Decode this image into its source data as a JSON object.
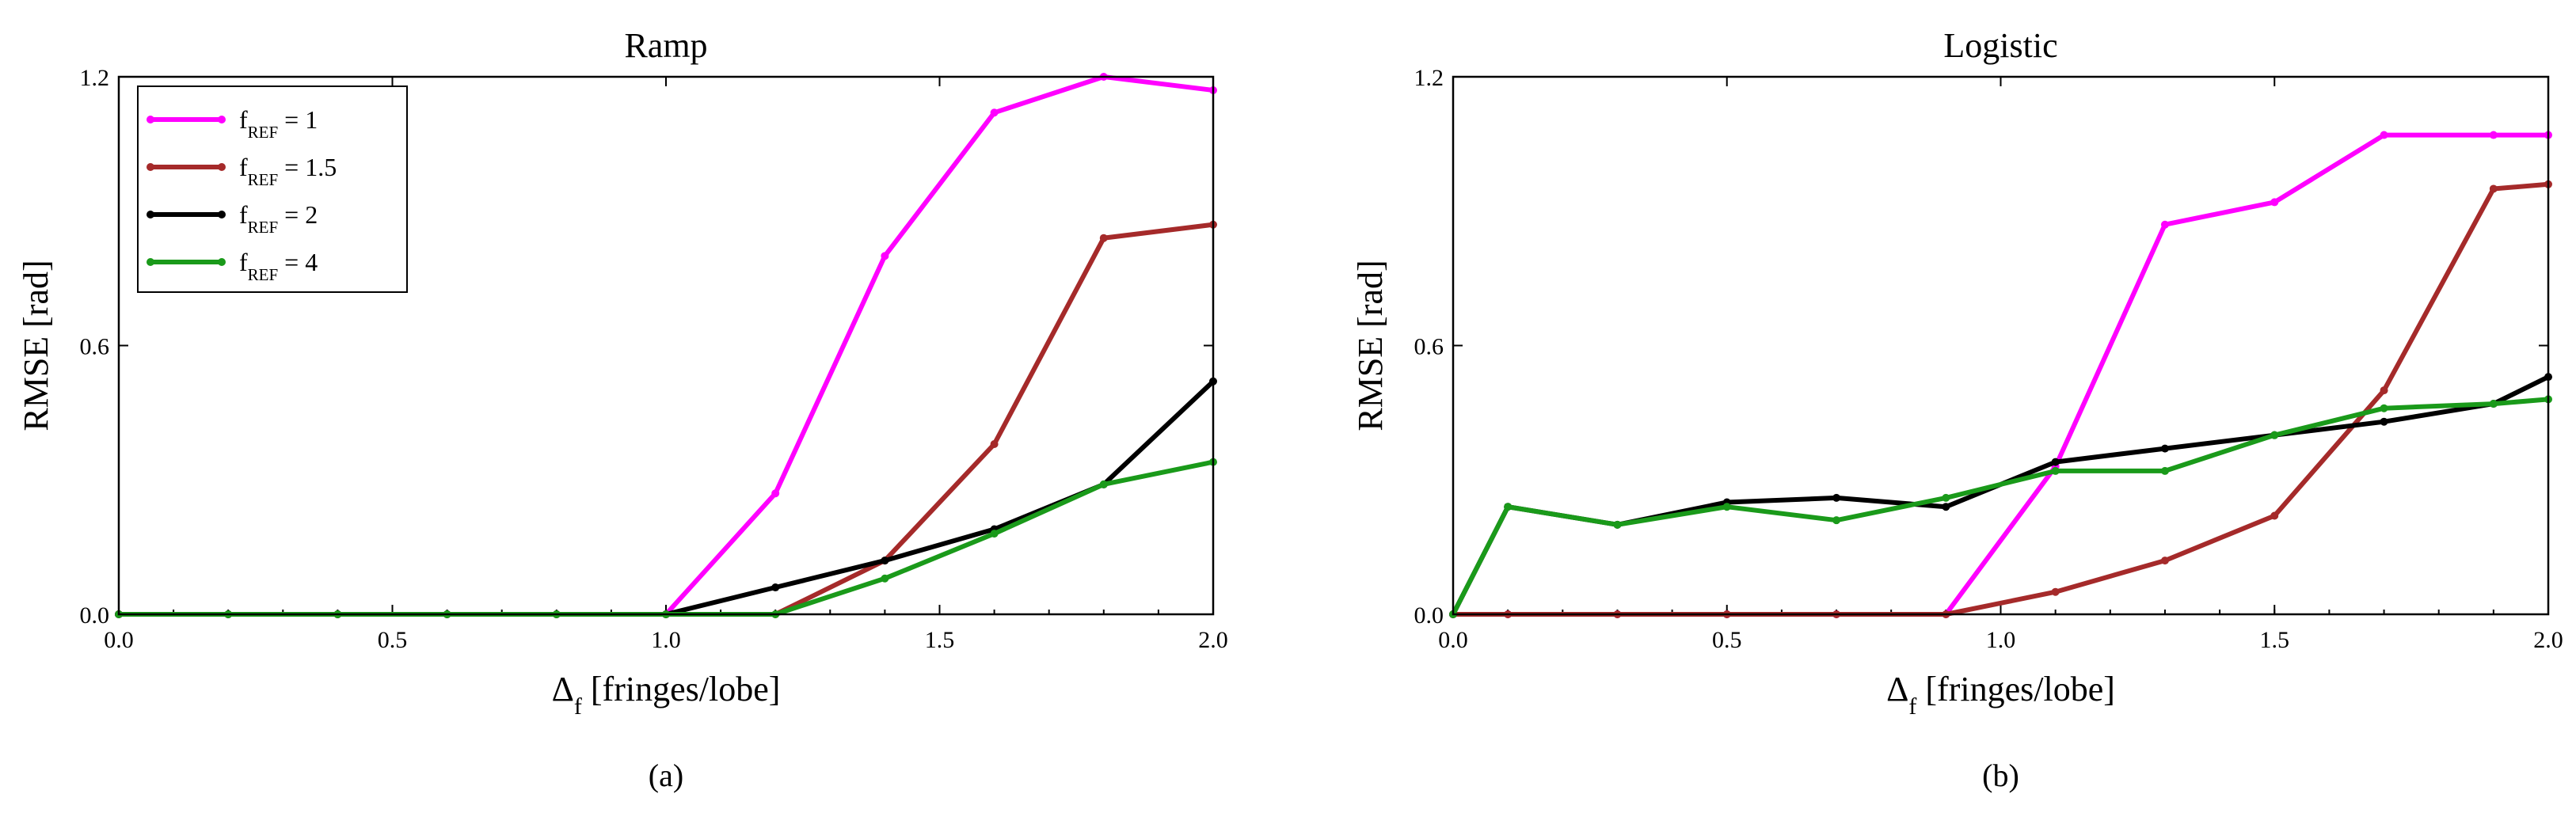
{
  "chart_data": [
    {
      "type": "line",
      "title": "Ramp",
      "xlabel_main": "Δ",
      "xlabel_sub": "f",
      "xlabel_rest": " [fringes/lobe]",
      "ylabel": "RMSE [rad]",
      "xlim": [
        0,
        2
      ],
      "ylim": [
        0,
        1.2
      ],
      "xticks": [
        "0.0",
        "0.5",
        "1.0",
        "1.5",
        "2.0"
      ],
      "yticks": [
        "0.0",
        "0.6",
        "1.2"
      ],
      "caption": "(a)",
      "legend": "top-left",
      "series": [
        {
          "name": "f",
          "sub": "REF",
          "suffix": " = 1",
          "color": "#ff00ff",
          "x": [
            0,
            0.2,
            0.4,
            0.6,
            0.8,
            1.0,
            1.2,
            1.4,
            1.6,
            1.8,
            2.0
          ],
          "y": [
            0,
            0,
            0,
            0,
            0,
            0,
            0.27,
            0.8,
            1.12,
            1.2,
            1.17
          ]
        },
        {
          "name": "f",
          "sub": "REF",
          "suffix": " = 1.5",
          "color": "#a52a2a",
          "x": [
            0,
            0.2,
            0.4,
            0.6,
            0.8,
            1.0,
            1.2,
            1.4,
            1.6,
            1.8,
            2.0
          ],
          "y": [
            0,
            0,
            0,
            0,
            0,
            0,
            0,
            0.12,
            0.38,
            0.84,
            0.87
          ]
        },
        {
          "name": "f",
          "sub": "REF",
          "suffix": " = 2",
          "color": "#000000",
          "x": [
            0,
            0.2,
            0.4,
            0.6,
            0.8,
            1.0,
            1.2,
            1.4,
            1.6,
            1.8,
            2.0
          ],
          "y": [
            0,
            0,
            0,
            0,
            0,
            0,
            0.06,
            0.12,
            0.19,
            0.29,
            0.52
          ]
        },
        {
          "name": "f",
          "sub": "REF",
          "suffix": " = 4",
          "color": "#1a9a1a",
          "x": [
            0,
            0.2,
            0.4,
            0.6,
            0.8,
            1.0,
            1.2,
            1.4,
            1.6,
            1.8,
            2.0
          ],
          "y": [
            0,
            0,
            0,
            0,
            0,
            0,
            0,
            0.08,
            0.18,
            0.29,
            0.34
          ]
        }
      ]
    },
    {
      "type": "line",
      "title": "Logistic",
      "xlabel_main": "Δ",
      "xlabel_sub": "f",
      "xlabel_rest": " [fringes/lobe]",
      "ylabel": "RMSE [rad]",
      "xlim": [
        0,
        2
      ],
      "ylim": [
        0,
        1.2
      ],
      "xticks": [
        "0.0",
        "0.5",
        "1.0",
        "1.5",
        "2.0"
      ],
      "yticks": [
        "0.0",
        "0.6",
        "1.2"
      ],
      "caption": "(b)",
      "series": [
        {
          "name": "f",
          "sub": "REF",
          "suffix": " = 1",
          "color": "#ff00ff",
          "x": [
            0,
            0.1,
            0.3,
            0.5,
            0.7,
            0.9,
            1.1,
            1.3,
            1.5,
            1.7,
            1.9,
            2.0
          ],
          "y": [
            0,
            0,
            0,
            0,
            0,
            0,
            0.33,
            0.87,
            0.92,
            1.07,
            1.07,
            1.07
          ]
        },
        {
          "name": "f",
          "sub": "REF",
          "suffix": " = 1.5",
          "color": "#a52a2a",
          "x": [
            0,
            0.1,
            0.3,
            0.5,
            0.7,
            0.9,
            1.1,
            1.3,
            1.5,
            1.7,
            1.9,
            2.0
          ],
          "y": [
            0,
            0,
            0,
            0,
            0,
            0,
            0.05,
            0.12,
            0.22,
            0.5,
            0.95,
            0.96
          ]
        },
        {
          "name": "f",
          "sub": "REF",
          "suffix": " = 2",
          "color": "#000000",
          "x": [
            0,
            0.1,
            0.3,
            0.5,
            0.7,
            0.9,
            1.1,
            1.3,
            1.5,
            1.7,
            1.9,
            2.0
          ],
          "y": [
            0,
            0.24,
            0.2,
            0.25,
            0.26,
            0.24,
            0.34,
            0.37,
            0.4,
            0.43,
            0.47,
            0.53
          ]
        },
        {
          "name": "f",
          "sub": "REF",
          "suffix": " = 4",
          "color": "#1a9a1a",
          "x": [
            0,
            0.1,
            0.3,
            0.5,
            0.7,
            0.9,
            1.1,
            1.3,
            1.5,
            1.7,
            1.9,
            2.0
          ],
          "y": [
            0,
            0.24,
            0.2,
            0.24,
            0.21,
            0.26,
            0.32,
            0.32,
            0.4,
            0.46,
            0.47,
            0.48
          ]
        }
      ]
    }
  ]
}
